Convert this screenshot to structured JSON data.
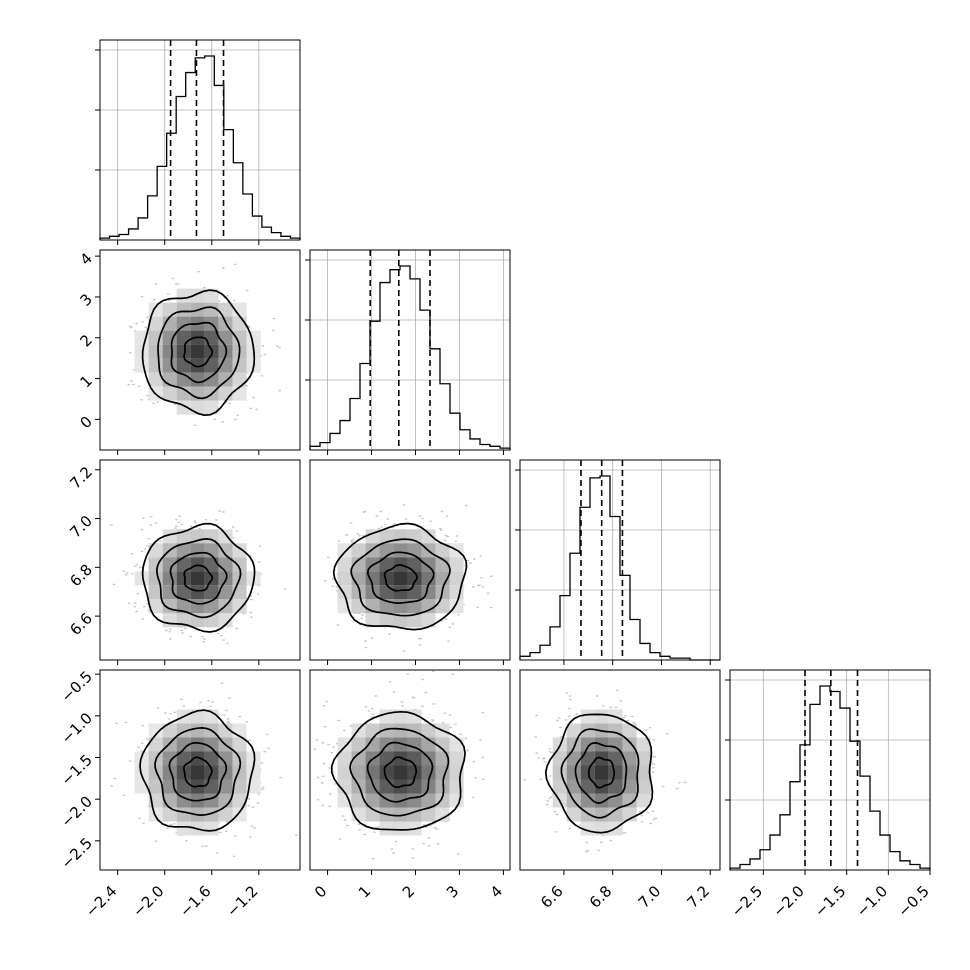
{
  "chart_data": {
    "type": "corner",
    "grid": true,
    "parameters": [
      {
        "range": [
          -2.55,
          -0.85
        ],
        "ticks": [
          -2.4,
          -2.0,
          -1.6,
          -1.2
        ],
        "tick_labels": [
          "−2.4",
          "−2.0",
          "−1.6",
          "−1.2"
        ],
        "quantiles": [
          -1.95,
          -1.73,
          -1.5
        ],
        "hist": [
          1,
          2,
          3,
          6,
          12,
          24,
          40,
          58,
          78,
          91,
          99,
          100,
          84,
          60,
          42,
          25,
          13,
          7,
          4,
          2,
          1
        ]
      },
      {
        "range": [
          -0.4,
          4.15
        ],
        "ticks": [
          0,
          1,
          2,
          3,
          4
        ],
        "tick_labels": [
          "0",
          "1",
          "2",
          "3",
          "4"
        ],
        "quantiles": [
          0.97,
          1.62,
          2.33
        ],
        "hist": [
          2,
          4,
          9,
          16,
          28,
          47,
          70,
          91,
          98,
          100,
          93,
          76,
          55,
          36,
          20,
          11,
          6,
          3,
          2,
          1
        ]
      },
      {
        "range": [
          6.42,
          7.24
        ],
        "ticks": [
          6.6,
          6.8,
          7.0,
          7.2
        ],
        "tick_labels": [
          "6.6",
          "6.8",
          "7.0",
          "7.2"
        ],
        "quantiles": [
          6.67,
          6.755,
          6.84
        ],
        "hist": [
          2,
          4,
          8,
          18,
          35,
          58,
          83,
          99,
          100,
          78,
          46,
          22,
          9,
          4,
          2,
          1,
          1,
          0,
          0,
          0
        ]
      },
      {
        "range": [
          -2.9,
          -0.5
        ],
        "ticks": [
          -2.5,
          -2.0,
          -1.5,
          -1.0,
          -0.5
        ],
        "tick_labels": [
          "−2.5",
          "−2.0",
          "−1.5",
          "−1.0",
          "−0.5"
        ],
        "quantiles": [
          -2.0,
          -1.69,
          -1.37
        ],
        "hist": [
          1,
          3,
          6,
          11,
          19,
          30,
          48,
          68,
          90,
          100,
          97,
          88,
          70,
          51,
          32,
          19,
          10,
          5,
          3,
          1
        ]
      }
    ],
    "row_ticks": [
      null,
      {
        "ticks": [
          0,
          1,
          2,
          3,
          4
        ],
        "tick_labels": [
          "0",
          "1",
          "2",
          "3",
          "4"
        ],
        "range": [
          -0.75,
          4.15
        ]
      },
      {
        "ticks": [
          6.6,
          6.8,
          7.0,
          7.2
        ],
        "tick_labels": [
          "6.6",
          "6.8",
          "7.0",
          "7.2"
        ],
        "range": [
          6.42,
          7.24
        ]
      },
      {
        "ticks": [
          -2.5,
          -2.0,
          -1.5,
          -1.0,
          -0.5
        ],
        "tick_labels": [
          "−2.5",
          "−2.0",
          "−1.5",
          "−1.0",
          "−0.5"
        ],
        "range": [
          -2.85,
          -0.45
        ]
      }
    ],
    "hist_y_ticks": [
      0.35,
      0.65,
      0.95
    ],
    "pair_means": [
      [
        null,
        null,
        null,
        null
      ],
      [
        -1.72,
        1.72,
        null,
        null
      ],
      [
        -1.72,
        6.75,
        6.75,
        null
      ],
      [
        -1.72,
        -1.68,
        1.65,
        -1.68,
        6.75,
        -1.68
      ]
    ],
    "pair_widths": {
      "p0": 0.2,
      "p1": 0.62,
      "p2": 0.09,
      "p3": 0.3
    },
    "contour_levels": [
      0.55,
      1.1,
      1.65,
      2.25
    ]
  }
}
